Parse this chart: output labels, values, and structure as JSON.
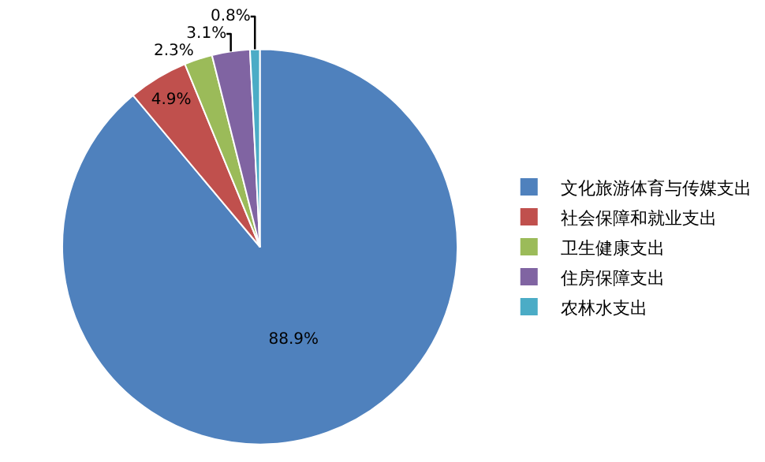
{
  "chart_data": {
    "type": "pie",
    "categories": [
      "文化旅游体育与传媒支出",
      "社会保障和就业支出",
      "卫生健康支出",
      "住房保障支出",
      "农林水支出"
    ],
    "values": [
      88.9,
      4.9,
      2.3,
      3.1,
      0.8
    ],
    "colors": [
      "#4f81bd",
      "#c0504d",
      "#9bbb59",
      "#8064a2",
      "#4bacc6"
    ],
    "value_labels": [
      "88.9%",
      "4.9%",
      "2.3%",
      "3.1%",
      "0.8%"
    ],
    "legend": "right"
  }
}
